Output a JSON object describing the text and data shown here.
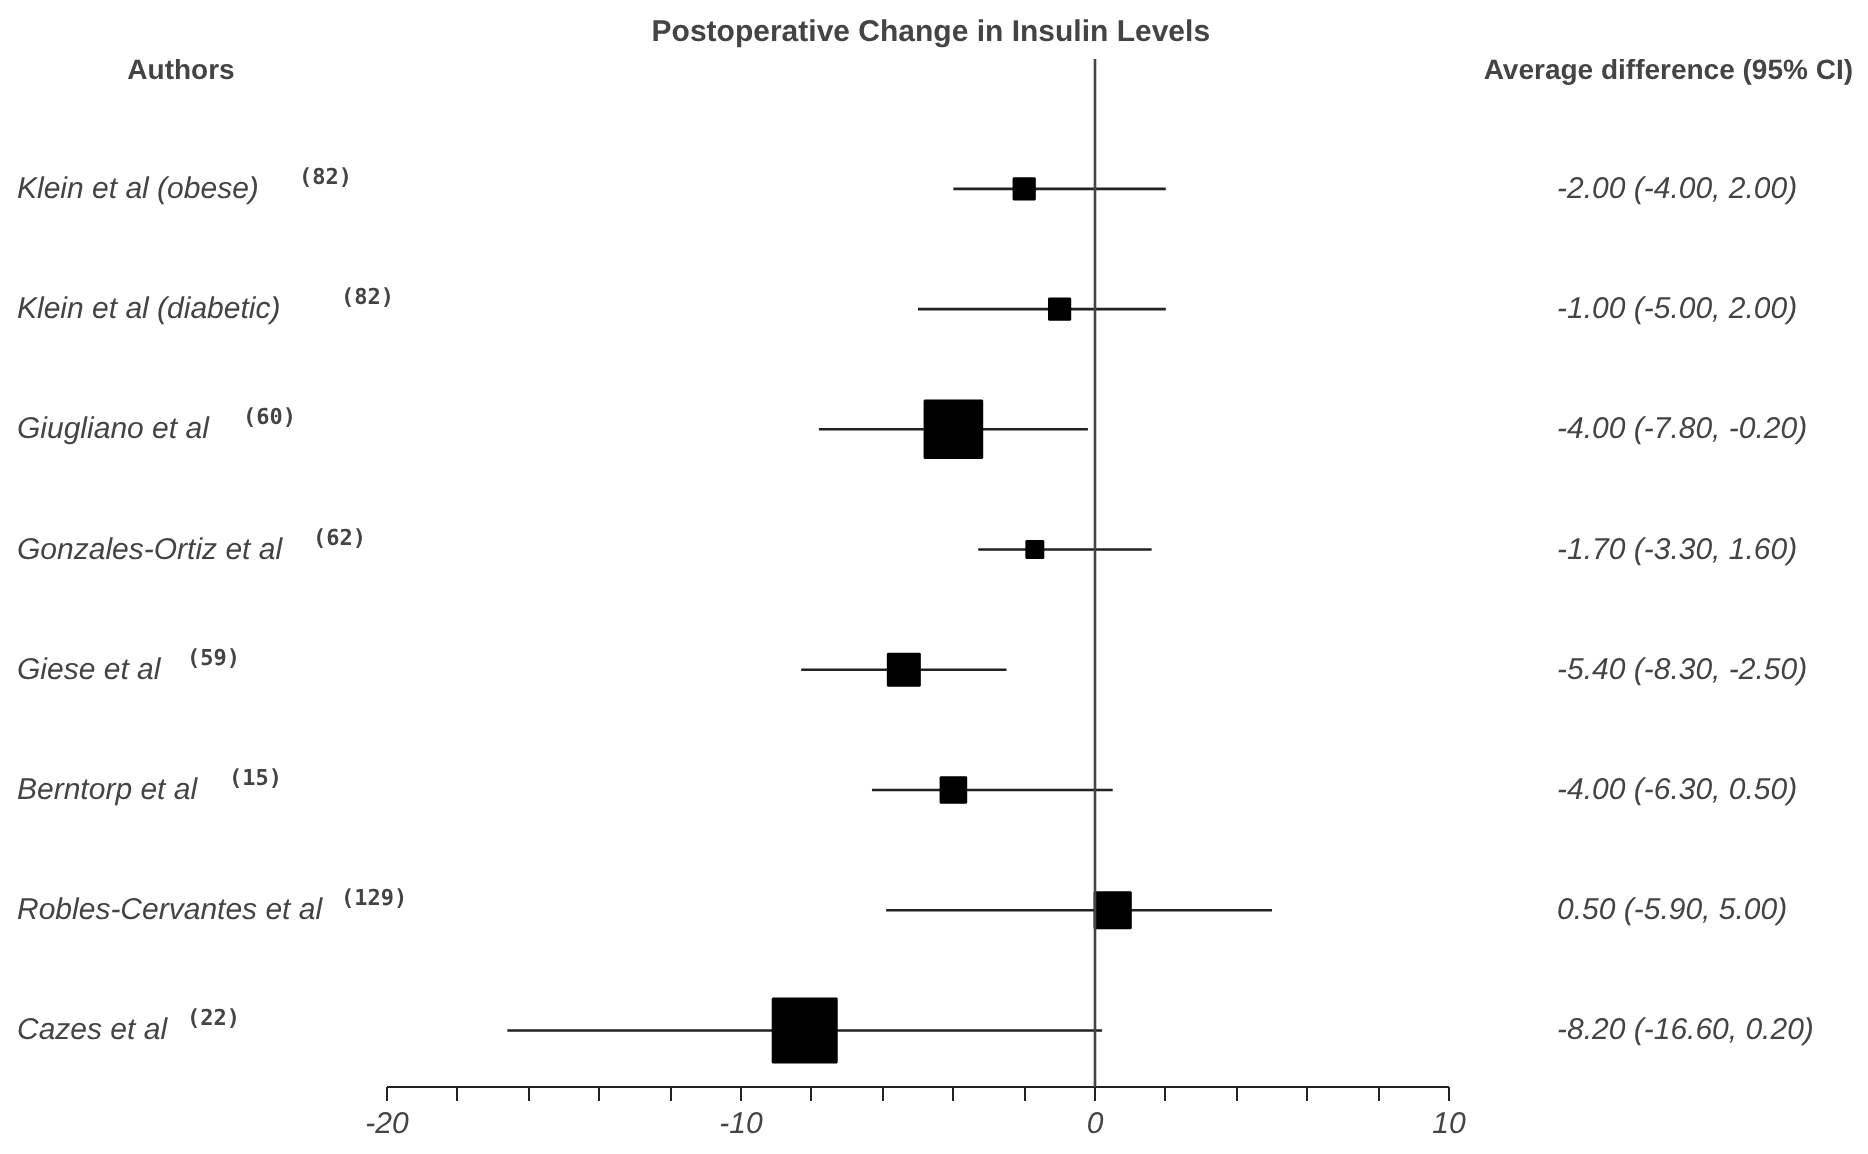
{
  "chart_data": {
    "type": "bubble",
    "orientation": "horizontal",
    "marker": "square",
    "color": "#000000",
    "title": "Postoperative Change in  Insulin Levels",
    "annotations": [
      "Authors",
      "Average difference (95% CI)",
      "-2.00 (-4.00, 2.00)",
      "-1.00 (-5.00, 2.00)",
      "-4.00 (-7.80, -0.20)",
      "-1.70 (-3.30, 1.60)",
      "-5.40 (-8.30, -2.50)",
      "-4.00 (-6.30, 0.50)",
      "0.50 (-5.90, 5.00)",
      "-8.20 (-16.60, 0.20)"
    ],
    "categories": [
      "Klein et al (obese) $^{(82)}$",
      "Klein et al (diabetic) $^{(82)}$",
      "Giugliano et al $^{(60)}$",
      "Gonzales-Ortiz et al $^{(62)}$",
      "Giese et al $^{(59)}$",
      "Berntorp et al $^{(15)}$",
      "Robles-Cervantes et al $^{(129)}$",
      "Cazes et al $^{(22)}$"
    ],
    "values": [
      -2.0,
      -1.0,
      -4.0,
      -1.7,
      -5.4,
      -4.0,
      0.5,
      -8.2
    ],
    "errors": [
      [
        -4.0,
        2.0
      ],
      [
        -5.0,
        2.0
      ],
      [
        -7.8,
        -0.2
      ],
      [
        -3.3,
        1.6
      ],
      [
        -8.3,
        -2.5
      ],
      [
        -6.3,
        0.5
      ],
      [
        -5.9,
        5.0
      ],
      [
        -16.6,
        0.2
      ]
    ],
    "sizes": [
      0.11,
      0.11,
      0.81,
      0.07,
      0.25,
      0.16,
      0.32,
      1
    ],
    "xlim": [
      -20,
      10
    ],
    "xticks": [
      -20,
      {
        "value": -18,
        "label": null
      },
      {
        "value": -16,
        "label": null
      },
      {
        "value": -14,
        "label": null
      },
      {
        "value": -12,
        "label": null
      },
      -10,
      {
        "value": -8,
        "label": null
      },
      {
        "value": -6,
        "label": null
      },
      {
        "value": -4,
        "label": null
      },
      {
        "value": -2,
        "label": null
      },
      0,
      {
        "value": 2,
        "label": null
      },
      {
        "value": 4,
        "label": null
      },
      {
        "value": 6,
        "label": null
      },
      {
        "value": 8,
        "label": null
      },
      10
    ],
    "ref_lines": [
      {
        "axis": "x",
        "value": 0,
        "color": "#444444"
      }
    ]
  }
}
